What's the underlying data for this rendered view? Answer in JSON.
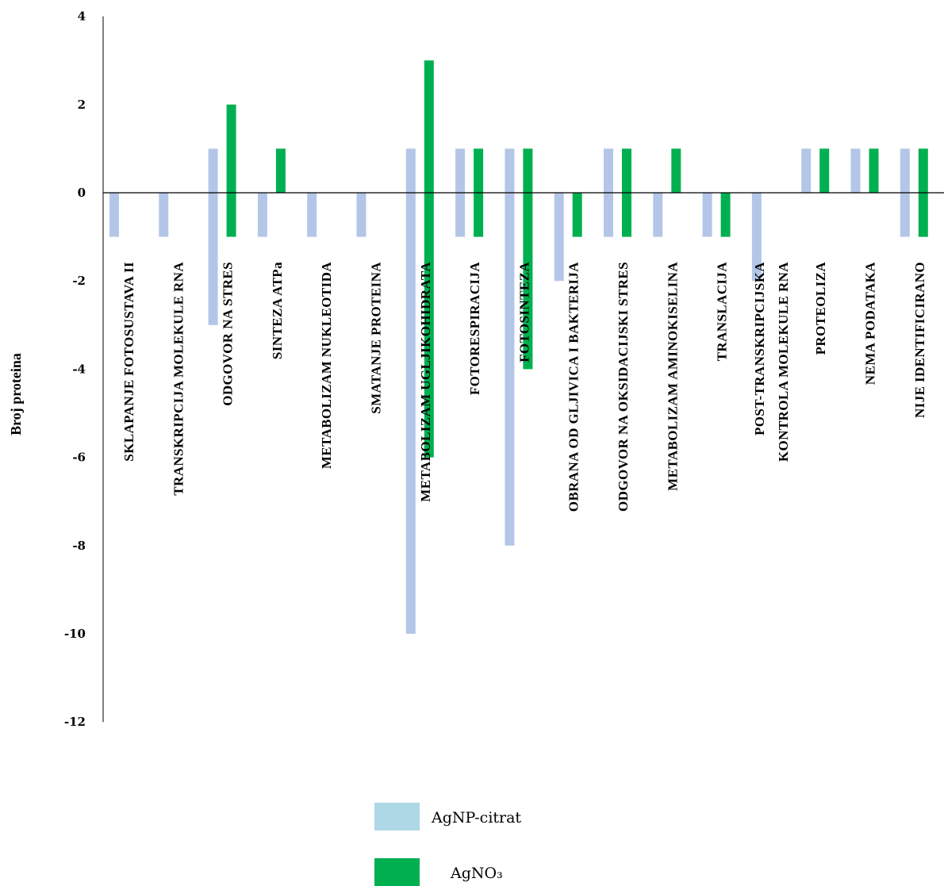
{
  "chart_data": {
    "type": "bar",
    "ylabel": "Broj proteina",
    "xlabel": "",
    "ylim": [
      -12,
      4
    ],
    "yticks": [
      4,
      2,
      0,
      -2,
      -4,
      -6,
      -8,
      -10,
      -12
    ],
    "grid": false,
    "legend_position": "bottom-center",
    "categories": [
      "SKLAPANJE FOTOSUSTAVA II",
      "TRANSKRIPCIJA MOLEKULE RNA",
      "ODGOVOR NA STRES",
      "SINTEZA ATPa",
      "METABOLIZAM NUKLEOTIDA",
      "SMATANJE PROTEINA",
      "METABOLIZAM UGLJIKOHIDRATA",
      "FOTORESPIRACIJA",
      "FOTOSINTEZA",
      "OBRANA OD GLJIVICA I BAKTERIJA",
      "ODGOVOR NA OKSIDACIJSKI STRES",
      "METABOLIZAM AMINOKISELINA",
      "TRANSLACIJA",
      "POST-TRANSKRIPCIJSKA\nKONTROLA MOLEKULE RNA",
      "PROTEOLIZA",
      "NEMA PODATAKA",
      "NIJE IDENTIFICIRANO"
    ],
    "series": [
      {
        "name": "AgNP-citrat",
        "color": "#b4c6e7",
        "legend_color": "#add8e6",
        "up": [
          0,
          0,
          1,
          0,
          0,
          0,
          1,
          1,
          1,
          0,
          1,
          0,
          0,
          0,
          1,
          1,
          1
        ],
        "down": [
          -1,
          -1,
          -3,
          -1,
          -1,
          -1,
          -10,
          -1,
          -8,
          -2,
          -1,
          -1,
          -1,
          -2,
          0,
          0,
          -1
        ]
      },
      {
        "name": "AgNO₃",
        "color": "#00b050",
        "legend_color": "#00b050",
        "up": [
          0,
          0,
          2,
          1,
          0,
          0,
          3,
          1,
          1,
          0,
          1,
          1,
          0,
          0,
          1,
          1,
          1
        ],
        "down": [
          0,
          0,
          -1,
          0,
          0,
          0,
          -6,
          -1,
          -4,
          -1,
          -1,
          0,
          -1,
          0,
          0,
          0,
          -1
        ]
      }
    ]
  }
}
